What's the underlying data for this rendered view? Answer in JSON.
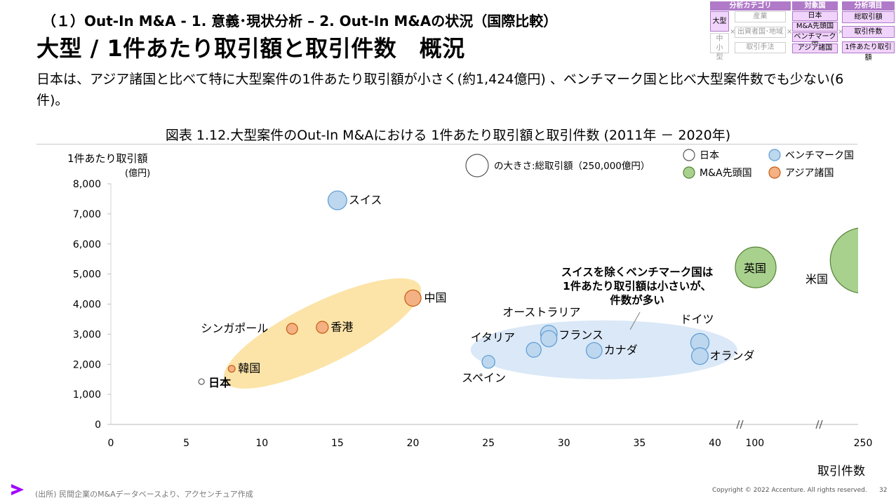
{
  "header": {
    "breadcrumb": "（１）Out-In M&A - 1. 意義･現状分析 – 2. Out-In M&Aの状況（国際比較）",
    "title": "大型 / 1件あたり取引額と取引件数　概況",
    "summary": "日本は、アジア諸国と比べて特に大型案件の1件あたり取引額が小さく(約1,424億円) 、ベンチマーク国と比べ大型案件数でも少ない(6件)。"
  },
  "matrix": {
    "col1_header": "分析カテゴリ",
    "col2_header": "対象国",
    "col3_header": "分析項目",
    "size_large": "大型",
    "size_small": "中小型",
    "cat_items": [
      "産業",
      "出資者国･地域",
      "取引手法"
    ],
    "country_items": [
      "日本",
      "M&A先頭国",
      "ベンチマーク国",
      "アジア諸国"
    ],
    "analysis_items": [
      "総取引額",
      "取引件数",
      "1件あたり取引額"
    ],
    "cross": "×"
  },
  "chart_data": {
    "type": "bubble",
    "title": "図表 1.12.大型案件のOut-In M&Aにおける 1件あたり取引額と取引件数 (2011年 － 2020年)",
    "xlabel": "取引件数",
    "ylabel_line1": "1件あたり取引額",
    "ylabel_line2": "(億円)",
    "x_segments": [
      {
        "min": 0,
        "max": 40,
        "ticks": [
          0,
          5,
          10,
          15,
          20,
          25,
          30,
          35,
          40
        ]
      },
      {
        "min": 95,
        "max": 125,
        "ticks": [
          100
        ]
      },
      {
        "min": 230,
        "max": 260,
        "ticks": [
          250
        ]
      }
    ],
    "ylim": [
      0,
      8000
    ],
    "yticks": [
      0,
      1000,
      2000,
      3000,
      4000,
      5000,
      6000,
      7000,
      8000
    ],
    "ytick_labels": [
      "0",
      "1,000",
      "2,000",
      "3,000",
      "4,000",
      "5,000",
      "6,000",
      "7,000",
      "8,000"
    ],
    "size_legend": {
      "label": "の大きさ:総取引額（250,000億円）",
      "value": 250000
    },
    "groups": [
      {
        "key": "japan",
        "name": "日本",
        "color": "#ffffff",
        "stroke": "#555555"
      },
      {
        "key": "benchmark",
        "name": "ベンチマーク国",
        "color": "#bdd7ee",
        "stroke": "#5b9bd5"
      },
      {
        "key": "lead",
        "name": "M&A先頭国",
        "color": "#a9d18e",
        "stroke": "#548235"
      },
      {
        "key": "asia",
        "name": "アジア諸国",
        "color": "#f4b183",
        "stroke": "#c55a11"
      }
    ],
    "points": [
      {
        "label": "日本",
        "group": "japan",
        "x": 6,
        "y": 1424,
        "total": 8544
      },
      {
        "label": "韓国",
        "group": "asia",
        "x": 8,
        "y": 1850,
        "total": 14800
      },
      {
        "label": "シンガポール",
        "group": "asia",
        "x": 12,
        "y": 3180,
        "total": 38160
      },
      {
        "label": "香港",
        "group": "asia",
        "x": 14,
        "y": 3230,
        "total": 45220
      },
      {
        "label": "中国",
        "group": "asia",
        "x": 20,
        "y": 4200,
        "total": 84000
      },
      {
        "label": "スイス",
        "group": "benchmark",
        "x": 15,
        "y": 7450,
        "total": 111750
      },
      {
        "label": "スペイン",
        "group": "benchmark",
        "x": 25,
        "y": 2080,
        "total": 52000
      },
      {
        "label": "イタリア",
        "group": "benchmark",
        "x": 28,
        "y": 2480,
        "total": 69440
      },
      {
        "label": "オーストラリア",
        "group": "benchmark",
        "x": 29,
        "y": 3020,
        "total": 87580
      },
      {
        "label": "フランス",
        "group": "benchmark",
        "x": 29,
        "y": 2850,
        "total": 82650
      },
      {
        "label": "カナダ",
        "group": "benchmark",
        "x": 32,
        "y": 2460,
        "total": 78720
      },
      {
        "label": "ドイツ",
        "group": "benchmark",
        "x": 39,
        "y": 2720,
        "total": 106080
      },
      {
        "label": "オランダ",
        "group": "benchmark",
        "x": 39,
        "y": 2270,
        "total": 88530
      },
      {
        "label": "英国",
        "group": "lead",
        "x": 101,
        "y": 5220,
        "total": 527220
      },
      {
        "label": "米国",
        "group": "lead",
        "x": 250,
        "y": 5450,
        "total": 1362500
      }
    ],
    "annotation": [
      "スイスを除くベンチマーク国は",
      "1件あたり取引額は小さいが、",
      "件数が多い"
    ]
  },
  "footer": {
    "source": "(出所) 民間企業のM&Aデータベースより、アクセンチュア作成",
    "copyright": "Copyright © 2022 Accenture. All rights reserved.",
    "page": "32"
  },
  "colors": {
    "accent": "#a100ff",
    "asia_ellipse": "#fce4a8",
    "bench_ellipse": "#dae8f7"
  }
}
